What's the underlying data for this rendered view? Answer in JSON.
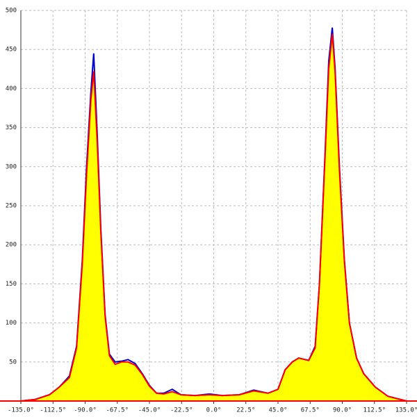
{
  "chart_data": {
    "type": "area",
    "fill_color": "#ffff00",
    "grid": true,
    "x": [
      -135,
      -125,
      -115,
      -108,
      -101,
      -96,
      -92,
      -89,
      -86,
      -84,
      -81.5,
      -79,
      -76,
      -73,
      -69,
      -64.5,
      -60,
      -55,
      -50,
      -45,
      -40,
      -35,
      -29,
      -23,
      -13,
      -3,
      6,
      18,
      28,
      38,
      45,
      50,
      55,
      59.5,
      66.5,
      71,
      74,
      78,
      80.5,
      83,
      85,
      88,
      91.5,
      95,
      100,
      105,
      113,
      122,
      135
    ],
    "series": [
      {
        "name": "blue",
        "color": "#0000cc",
        "values": [
          0,
          2,
          8,
          18,
          32,
          70,
          180,
          300,
          395,
          445,
          340,
          220,
          110,
          60,
          50,
          51,
          53,
          48,
          35,
          20,
          10,
          10,
          15,
          8,
          7,
          9,
          7,
          8,
          14,
          10,
          15,
          40,
          50,
          55,
          52,
          70,
          150,
          320,
          435,
          478,
          425,
          300,
          180,
          100,
          55,
          35,
          18,
          6,
          0
        ]
      },
      {
        "name": "red",
        "color": "#ff0000",
        "values": [
          0,
          2,
          8,
          18,
          30,
          68,
          175,
          290,
          385,
          422,
          330,
          215,
          108,
          58,
          47,
          50,
          50,
          46,
          34,
          19,
          10,
          9,
          12,
          8,
          7,
          8,
          7,
          8,
          13,
          10,
          15,
          40,
          50,
          55,
          52,
          68,
          150,
          315,
          425,
          470,
          420,
          295,
          178,
          100,
          55,
          35,
          18,
          6,
          0
        ]
      }
    ],
    "xlim": [
      -135,
      135
    ],
    "ylim": [
      0,
      500
    ],
    "xticks": [
      {
        "value": -135,
        "label": "-135.0°"
      },
      {
        "value": -112.5,
        "label": "-112.5°"
      },
      {
        "value": -90,
        "label": "-90.0°"
      },
      {
        "value": -67.5,
        "label": "-67.5°"
      },
      {
        "value": -45,
        "label": "-45.0°"
      },
      {
        "value": -22.5,
        "label": "-22.5°"
      },
      {
        "value": 0,
        "label": "0.0°"
      },
      {
        "value": 22.5,
        "label": "22.5°"
      },
      {
        "value": 45,
        "label": "45.0°"
      },
      {
        "value": 67.5,
        "label": "67.5°"
      },
      {
        "value": 90,
        "label": "90.0°"
      },
      {
        "value": 112.5,
        "label": "112.5°"
      },
      {
        "value": 135,
        "label": "135.0°"
      }
    ],
    "yticks": [
      50,
      100,
      150,
      200,
      250,
      300,
      350,
      400,
      450,
      500
    ]
  }
}
